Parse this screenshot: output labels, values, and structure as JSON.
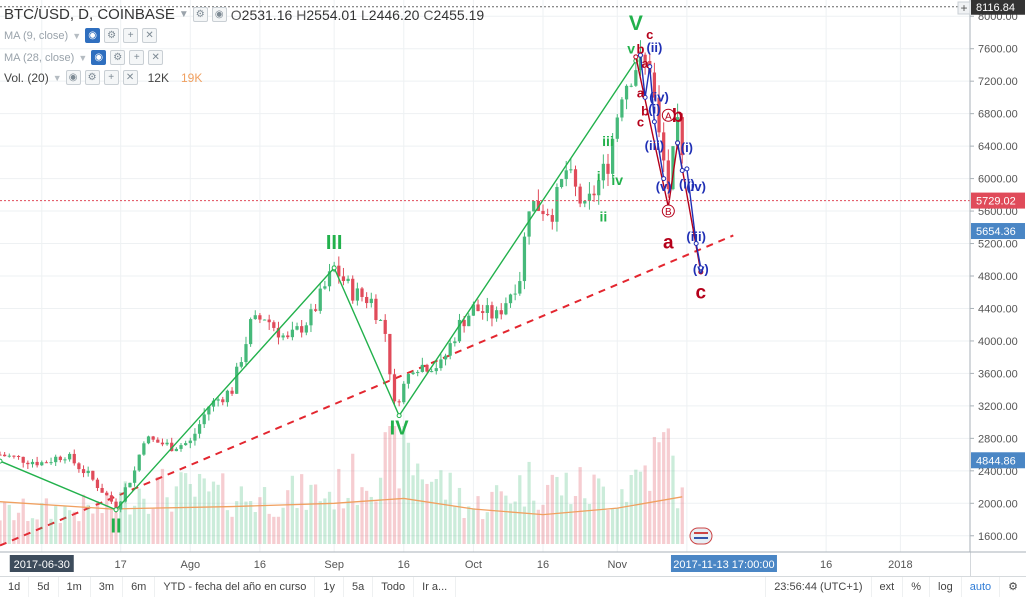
{
  "header": {
    "symbol": "BTC/USD, D, COINBASE",
    "ohlc": [
      {
        "k": "O",
        "v": "2531.16"
      },
      {
        "k": "H",
        "v": "2554.01"
      },
      {
        "k": "L",
        "v": "2446.20"
      },
      {
        "k": "C",
        "v": "2455.19"
      }
    ],
    "indicators": [
      {
        "label": "MA (9, close)"
      },
      {
        "label": "MA (28, close)"
      },
      {
        "label": "Vol. (20)",
        "values": [
          "12K",
          "19K"
        ]
      }
    ]
  },
  "colors": {
    "up": "#46b97a",
    "down": "#e04b5a",
    "green_wave": "#22b14c",
    "red_wave": "#b5001a",
    "blue_wave": "#1f2fb5",
    "trend": "#e3262f",
    "ma": "#f0a060"
  },
  "chart_data": {
    "type": "candlestick",
    "ylim": [
      1400,
      8200
    ],
    "x_range": [
      "2017-06-21",
      "2018-01-16"
    ],
    "y_ticks": [
      "8000.00",
      "7600.00",
      "7200.00",
      "6800.00",
      "6400.00",
      "6000.00",
      "5600.00",
      "5200.00",
      "4800.00",
      "4400.00",
      "4000.00",
      "3600.00",
      "3200.00",
      "2800.00",
      "2400.00",
      "2000.00",
      "1600.00"
    ],
    "x_ticks": [
      {
        "label": "2017-06-30",
        "date": "2017-06-30"
      },
      {
        "label": "17",
        "date": "2017-07-17"
      },
      {
        "label": "Ago",
        "date": "2017-08-01"
      },
      {
        "label": "16",
        "date": "2017-08-16"
      },
      {
        "label": "Sep",
        "date": "2017-09-01"
      },
      {
        "label": "16",
        "date": "2017-09-16"
      },
      {
        "label": "Oct",
        "date": "2017-10-01"
      },
      {
        "label": "16",
        "date": "2017-10-16"
      },
      {
        "label": "Nov",
        "date": "2017-11-01"
      },
      {
        "label": "16",
        "date": "2017-11-16"
      },
      {
        "label": "16",
        "date": "2017-12-16"
      },
      {
        "label": "2018",
        "date": "2018-01-01"
      }
    ],
    "price_labels": [
      {
        "value": "8116.84",
        "y": 8116.84,
        "color": "#333333"
      },
      {
        "value": "5729.02",
        "y": 5729.02,
        "color": "#e04b5a"
      },
      {
        "value": "5654.36",
        "y": 5354,
        "color": "#4a86c5"
      },
      {
        "value": "4844.86",
        "y": 2530,
        "color": "#4a86c5"
      }
    ],
    "crosshair": {
      "date_label": "2017-11-13 17:00:00",
      "price": 5729.02,
      "date": "2017-11-13"
    },
    "price_anchors": [
      [
        "2017-06-21",
        2600
      ],
      [
        "2017-06-25",
        2550
      ],
      [
        "2017-06-30",
        2500
      ],
      [
        "2017-07-05",
        2600
      ],
      [
        "2017-07-10",
        2350
      ],
      [
        "2017-07-16",
        1960
      ],
      [
        "2017-07-20",
        2400
      ],
      [
        "2017-07-22",
        2800
      ],
      [
        "2017-07-28",
        2700
      ],
      [
        "2017-08-01",
        2750
      ],
      [
        "2017-08-05",
        3200
      ],
      [
        "2017-08-10",
        3400
      ],
      [
        "2017-08-14",
        4200
      ],
      [
        "2017-08-17",
        4300
      ],
      [
        "2017-08-22",
        4000
      ],
      [
        "2017-08-27",
        4300
      ],
      [
        "2017-09-01",
        4900
      ],
      [
        "2017-09-05",
        4600
      ],
      [
        "2017-09-09",
        4500
      ],
      [
        "2017-09-12",
        4100
      ],
      [
        "2017-09-14",
        3200
      ],
      [
        "2017-09-18",
        3700
      ],
      [
        "2017-09-24",
        3700
      ],
      [
        "2017-09-28",
        4200
      ],
      [
        "2017-10-01",
        4400
      ],
      [
        "2017-10-06",
        4300
      ],
      [
        "2017-10-11",
        4800
      ],
      [
        "2017-10-13",
        5700
      ],
      [
        "2017-10-18",
        5600
      ],
      [
        "2017-10-21",
        6100
      ],
      [
        "2017-10-25",
        5600
      ],
      [
        "2017-10-30",
        6200
      ],
      [
        "2017-11-02",
        7100
      ],
      [
        "2017-11-05",
        7400
      ],
      [
        "2017-11-08",
        7400
      ],
      [
        "2017-11-10",
        6500
      ],
      [
        "2017-11-12",
        5900
      ],
      [
        "2017-11-14",
        6600
      ],
      [
        "2017-11-15",
        6200
      ]
    ],
    "volume_max": 19000,
    "volume_anchors": [
      [
        "2017-06-21",
        6000
      ],
      [
        "2017-07-15",
        7000
      ],
      [
        "2017-07-20",
        11000
      ],
      [
        "2017-08-15",
        9000
      ],
      [
        "2017-09-01",
        10000
      ],
      [
        "2017-09-15",
        18000
      ],
      [
        "2017-10-01",
        7000
      ],
      [
        "2017-10-13",
        12000
      ],
      [
        "2017-11-01",
        10000
      ],
      [
        "2017-11-12",
        19000
      ],
      [
        "2017-11-15",
        8000
      ]
    ],
    "ma_anchors": [
      [
        "2017-06-21",
        2020
      ],
      [
        "2017-07-15",
        1930
      ],
      [
        "2017-08-10",
        1960
      ],
      [
        "2017-09-01",
        2000
      ],
      [
        "2017-09-16",
        2060
      ],
      [
        "2017-10-01",
        1930
      ],
      [
        "2017-10-16",
        1860
      ],
      [
        "2017-11-01",
        1940
      ],
      [
        "2017-11-15",
        2080
      ]
    ],
    "trendline": {
      "from": [
        "2017-06-21",
        1480
      ],
      "to": [
        "2017-11-26",
        5300
      ]
    },
    "waves": [
      {
        "color": "#22b14c",
        "points": [
          [
            "2017-06-21",
            2520
          ],
          [
            "2017-07-16",
            1920
          ],
          [
            "2017-09-01",
            4900
          ],
          [
            "2017-09-15",
            3080
          ],
          [
            "2017-11-05",
            7450
          ]
        ]
      },
      {
        "color": "#b5001a",
        "points": [
          [
            "2017-11-05",
            7500
          ],
          [
            "2017-11-12",
            5650
          ],
          [
            "2017-11-14",
            6440
          ],
          [
            "2017-11-19",
            4850
          ]
        ]
      },
      {
        "color": "#1f2fb5",
        "points": [
          [
            "2017-11-06",
            7520
          ],
          [
            "2017-11-07",
            7000
          ],
          [
            "2017-11-08",
            7380
          ],
          [
            "2017-11-09",
            6700
          ],
          [
            "2017-11-11",
            6000
          ]
        ]
      },
      {
        "color": "#1f2fb5",
        "points": [
          [
            "2017-11-14",
            6440
          ],
          [
            "2017-11-15",
            6100
          ],
          [
            "2017-11-16",
            6120
          ],
          [
            "2017-11-18",
            5200
          ],
          [
            "2017-11-19",
            4900
          ]
        ]
      }
    ],
    "wave_labels": [
      {
        "text": "V",
        "x": "2017-11-05",
        "y": 7830,
        "color": "#22b14c",
        "size": 21
      },
      {
        "text": "III",
        "x": "2017-09-01",
        "y": 5130,
        "color": "#22b14c",
        "size": 20
      },
      {
        "text": "IV",
        "x": "2017-09-15",
        "y": 2850,
        "color": "#22b14c",
        "size": 20
      },
      {
        "text": "II",
        "x": "2017-07-16",
        "y": 1640,
        "color": "#22b14c",
        "size": 20
      },
      {
        "text": "iii",
        "x": "2017-10-30",
        "y": 6400,
        "color": "#22b14c",
        "size": 14
      },
      {
        "text": "iv",
        "x": "2017-11-01",
        "y": 5920,
        "color": "#22b14c",
        "size": 14
      },
      {
        "text": "ii",
        "x": "2017-10-29",
        "y": 5470,
        "color": "#22b14c",
        "size": 14
      },
      {
        "text": "i",
        "x": "2017-10-28",
        "y": 5970,
        "color": "#22b14c",
        "size": 14
      },
      {
        "text": "v",
        "x": "2017-11-04",
        "y": 7540,
        "color": "#22b14c",
        "size": 14
      },
      {
        "text": "b",
        "x": "2017-11-14",
        "y": 6700,
        "color": "#b5001a",
        "size": 19
      },
      {
        "text": "a",
        "x": "2017-11-12",
        "y": 5140,
        "color": "#b5001a",
        "size": 19
      },
      {
        "text": "c",
        "x": "2017-11-19",
        "y": 4520,
        "color": "#b5001a",
        "size": 19
      },
      {
        "text": "b",
        "x": "2017-11-06",
        "y": 7540,
        "color": "#b5001a",
        "size": 13
      },
      {
        "text": "c",
        "x": "2017-11-08",
        "y": 7720,
        "color": "#b5001a",
        "size": 13
      },
      {
        "text": "a",
        "x": "2017-11-07",
        "y": 7360,
        "color": "#b5001a",
        "size": 13
      },
      {
        "text": "a",
        "x": "2017-11-06",
        "y": 7000,
        "color": "#b5001a",
        "size": 13
      },
      {
        "text": "b",
        "x": "2017-11-07",
        "y": 6780,
        "color": "#b5001a",
        "size": 13
      },
      {
        "text": "c",
        "x": "2017-11-06",
        "y": 6640,
        "color": "#b5001a",
        "size": 13
      },
      {
        "text": "(ii)",
        "x": "2017-11-09",
        "y": 7560,
        "color": "#1f2fb5",
        "size": 13
      },
      {
        "text": "(iv)",
        "x": "2017-11-10",
        "y": 6950,
        "color": "#1f2fb5",
        "size": 13
      },
      {
        "text": "(i)",
        "x": "2017-11-09",
        "y": 6800,
        "color": "#1f2fb5",
        "size": 13
      },
      {
        "text": "(iii)",
        "x": "2017-11-09",
        "y": 6350,
        "color": "#1f2fb5",
        "size": 13
      },
      {
        "text": "(v)",
        "x": "2017-11-11",
        "y": 5850,
        "color": "#1f2fb5",
        "size": 13
      },
      {
        "text": "(i)",
        "x": "2017-11-16",
        "y": 6330,
        "color": "#1f2fb5",
        "size": 13
      },
      {
        "text": "(ii)",
        "x": "2017-11-16",
        "y": 5880,
        "color": "#1f2fb5",
        "size": 13
      },
      {
        "text": "(iv)",
        "x": "2017-11-18",
        "y": 5850,
        "color": "#1f2fb5",
        "size": 13
      },
      {
        "text": "(iii)",
        "x": "2017-11-18",
        "y": 5230,
        "color": "#1f2fb5",
        "size": 13
      },
      {
        "text": "(v)",
        "x": "2017-11-19",
        "y": 4830,
        "color": "#1f2fb5",
        "size": 13
      }
    ],
    "circle_labels": [
      {
        "text": "A",
        "x": "2017-11-12",
        "y": 6780,
        "color": "#b5001a"
      },
      {
        "text": "B",
        "x": "2017-11-12",
        "y": 5600,
        "color": "#b5001a"
      }
    ]
  },
  "toolbar": {
    "ranges": [
      "1d",
      "5d",
      "1m",
      "3m",
      "6m",
      "YTD - fecha del año en curso",
      "1y",
      "5a",
      "Todo",
      "Ir a..."
    ],
    "time": "23:56:44 (UTC+1)",
    "options": [
      "ext",
      "%",
      "log",
      "auto"
    ]
  }
}
